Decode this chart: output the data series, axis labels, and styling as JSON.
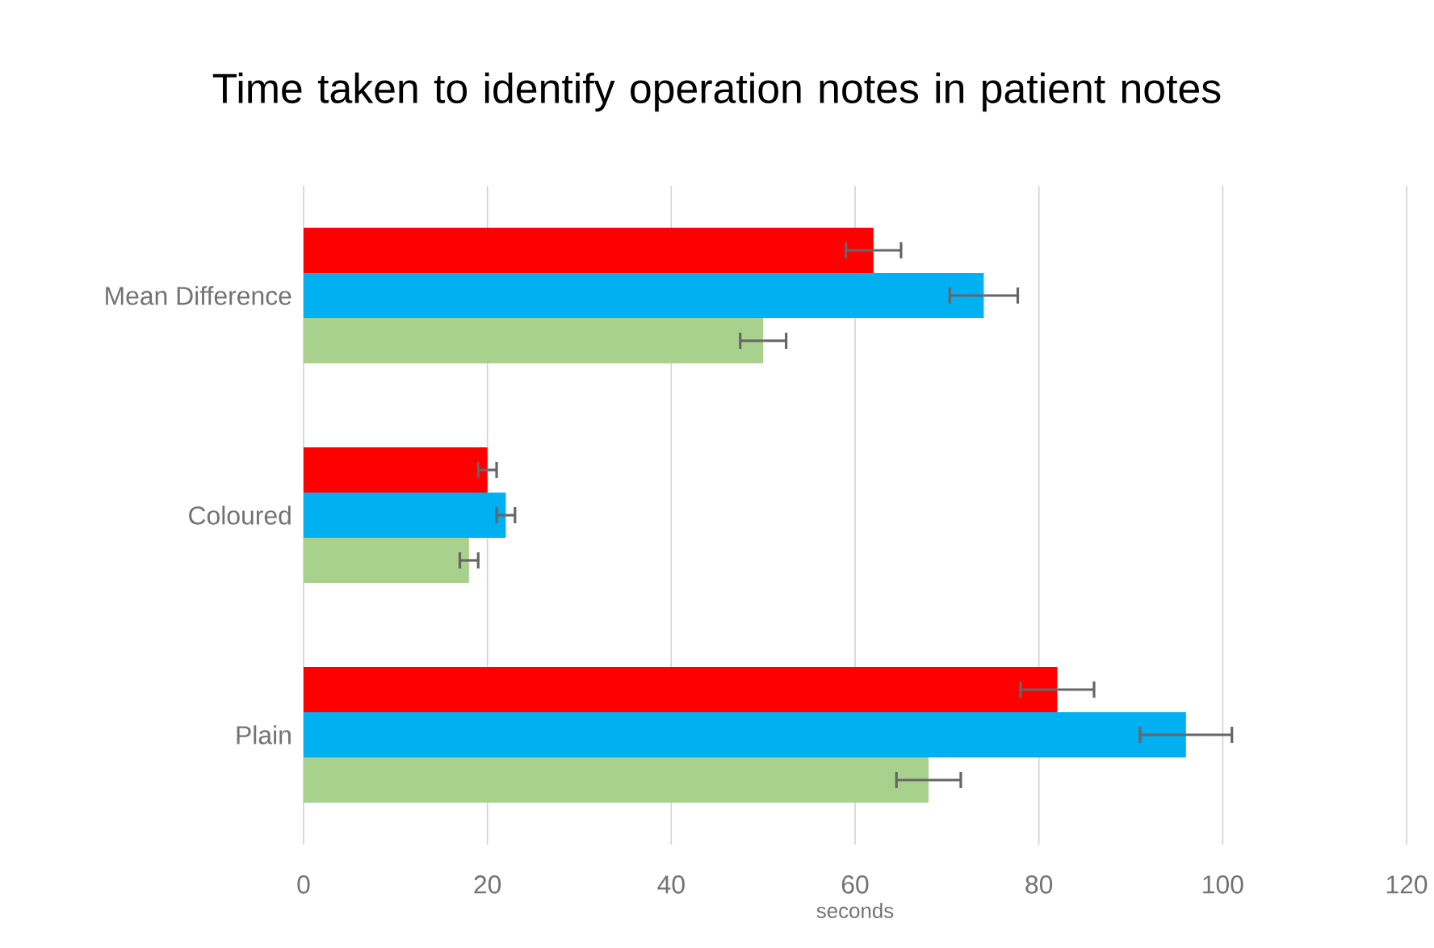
{
  "chart_data": {
    "type": "bar",
    "orientation": "horizontal",
    "title": "Time taken to identify operation notes in patient notes",
    "xlabel": "seconds",
    "categories": [
      "Mean Difference",
      "Coloured",
      "Plain"
    ],
    "series": [
      {
        "color": "#ff0000",
        "values": [
          62,
          20,
          82
        ],
        "errors": [
          3,
          1,
          4
        ]
      },
      {
        "color": "#00b0f0",
        "values": [
          74,
          22,
          96
        ],
        "errors": [
          3.7,
          1,
          5
        ]
      },
      {
        "color": "#a9d18e",
        "values": [
          50,
          18,
          68
        ],
        "errors": [
          2.5,
          1,
          3.5
        ]
      }
    ],
    "xlim": [
      0,
      120
    ],
    "xticks": [
      0,
      20,
      40,
      60,
      80,
      100,
      120
    ],
    "grid": "x"
  }
}
